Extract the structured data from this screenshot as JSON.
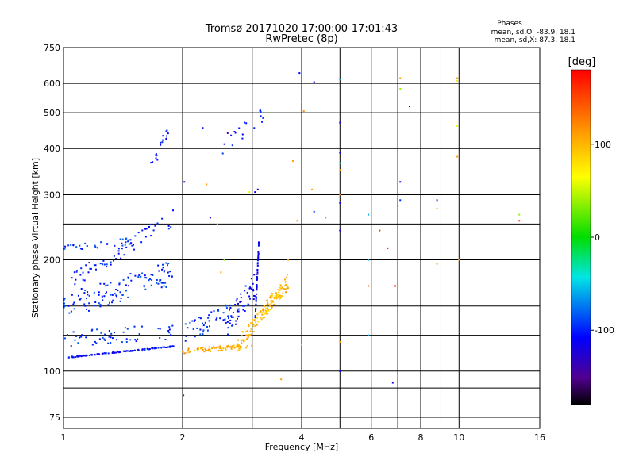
{
  "chart_data": {
    "type": "scatter",
    "title": "Tromsø 20171020 17:00:00-17:01:43",
    "subtitle": "RwPretec (8p)",
    "xlabel": "Frequency [MHz]",
    "ylabel": "Stationary phase Virtual Height [km]",
    "xscale": "log",
    "yscale": "log",
    "xlim": [
      1,
      16
    ],
    "ylim": [
      70,
      750
    ],
    "x_ticks": [
      1,
      2,
      4,
      6,
      8,
      10,
      16
    ],
    "x_tick_labels": [
      "1",
      "2",
      "4",
      "6",
      "8",
      "10",
      "16"
    ],
    "x_extra_gridlines": [
      3,
      5,
      7,
      9
    ],
    "y_ticks": [
      75,
      100,
      200,
      300,
      400,
      500,
      600,
      750
    ],
    "y_tick_labels": [
      "75",
      "100",
      "200",
      "300",
      "400",
      "500",
      "600",
      "750"
    ],
    "y_extra_gridlines": [
      90,
      125,
      150,
      250
    ],
    "grid": true,
    "legend": {
      "header": "Phases",
      "lines": [
        "mean, sd,O: -83.9, 18.1",
        "mean, sd,X: 87.3, 18.1"
      ],
      "placement": "top-right"
    },
    "colorbar": {
      "label": "[deg]",
      "range": [
        -180,
        180
      ],
      "ticks": [
        100,
        0,
        -100
      ],
      "tick_labels": [
        "100",
        "0",
        "-100"
      ]
    },
    "series": [
      {
        "traces": [
          {
            "x0": 1.03,
            "x1": 1.95,
            "y0": 109,
            "y1": 117,
            "phase": -105,
            "n": 110,
            "jitter": 0.003
          },
          {
            "x0": 1.0,
            "x1": 1.9,
            "y0": 122,
            "y1": 128,
            "phase": -95,
            "n": 55,
            "jitter": 0.05
          },
          {
            "x0": 1.0,
            "x1": 1.9,
            "y0": 150,
            "y1": 185,
            "phase": -95,
            "n": 120,
            "jitter": 0.08
          },
          {
            "x0": 1.05,
            "x1": 1.9,
            "y0": 175,
            "y1": 260,
            "phase": -100,
            "n": 60,
            "jitter": 0.05
          },
          {
            "x0": 1.0,
            "x1": 1.5,
            "y0": 215,
            "y1": 225,
            "phase": -95,
            "n": 30,
            "jitter": 0.02
          },
          {
            "x0": 1.65,
            "x1": 1.85,
            "y0": 350,
            "y1": 450,
            "phase": -105,
            "n": 18,
            "jitter": 0.04
          },
          {
            "x0": 2.0,
            "x1": 2.7,
            "y0": 126,
            "y1": 146,
            "phase": -95,
            "n": 45,
            "jitter": 0.06
          },
          {
            "x0": 2.6,
            "x1": 3.1,
            "y0": 135,
            "y1": 175,
            "phase": -105,
            "n": 55,
            "jitter": 0.08
          },
          {
            "x0": 3.05,
            "x1": 3.12,
            "y0": 135,
            "y1": 225,
            "phase": -110,
            "n": 50,
            "jitter": 0.02
          },
          {
            "x0": 2.0,
            "x1": 3.0,
            "y0": 113,
            "y1": 117,
            "phase": 105,
            "n": 75,
            "jitter": 0.015
          },
          {
            "x0": 2.75,
            "x1": 3.7,
            "y0": 118,
            "y1": 175,
            "phase": 100,
            "n": 110,
            "jitter": 0.05
          },
          {
            "x0": 3.1,
            "x1": 3.55,
            "y0": 138,
            "y1": 165,
            "phase": 90,
            "n": 30,
            "jitter": 0.04
          },
          {
            "x0": 2.5,
            "x1": 3.2,
            "y0": 400,
            "y1": 495,
            "phase": -100,
            "n": 18,
            "jitter": 0.05
          }
        ],
        "points": [
          [
            2.01,
            86,
            -95
          ],
          [
            2.02,
            325,
            -110
          ],
          [
            2.25,
            455,
            -100
          ],
          [
            2.3,
            320,
            110
          ],
          [
            2.45,
            250,
            90
          ],
          [
            2.5,
            185,
            110
          ],
          [
            2.55,
            200,
            30
          ],
          [
            2.6,
            440,
            -140
          ],
          [
            2.35,
            260,
            -110
          ],
          [
            2.95,
            305,
            60
          ],
          [
            3.05,
            305,
            -110
          ],
          [
            3.1,
            310,
            -110
          ],
          [
            3.8,
            370,
            110
          ],
          [
            3.95,
            640,
            -110
          ],
          [
            4.0,
            535,
            110
          ],
          [
            4.05,
            505,
            120
          ],
          [
            3.9,
            255,
            120
          ],
          [
            4.3,
            605,
            -110
          ],
          [
            4.25,
            310,
            110
          ],
          [
            4.3,
            270,
            -95
          ],
          [
            4.6,
            260,
            120
          ],
          [
            5.0,
            615,
            -60
          ],
          [
            5.0,
            470,
            -120
          ],
          [
            5.0,
            390,
            -110
          ],
          [
            5.0,
            365,
            -30
          ],
          [
            5.0,
            300,
            130
          ],
          [
            5.0,
            285,
            -110
          ],
          [
            5.0,
            240,
            -120
          ],
          [
            5.0,
            350,
            110
          ],
          [
            5.0,
            100,
            -110
          ],
          [
            5.0,
            120,
            110
          ],
          [
            4.0,
            118,
            40
          ],
          [
            5.9,
            265,
            -60
          ],
          [
            5.9,
            200,
            -60
          ],
          [
            5.9,
            170,
            140
          ],
          [
            5.9,
            125,
            -60
          ],
          [
            6.3,
            240,
            160
          ],
          [
            6.6,
            215,
            160
          ],
          [
            6.9,
            170,
            160
          ],
          [
            6.8,
            93,
            -110
          ],
          [
            7.1,
            620,
            110
          ],
          [
            7.1,
            580,
            40
          ],
          [
            7.1,
            325,
            -110
          ],
          [
            7.1,
            290,
            -95
          ],
          [
            7.0,
            280,
            150
          ],
          [
            7.5,
            520,
            -110
          ],
          [
            8.8,
            290,
            -95
          ],
          [
            8.8,
            275,
            110
          ],
          [
            8.8,
            195,
            110
          ],
          [
            9.9,
            610,
            80
          ],
          [
            9.9,
            620,
            110
          ],
          [
            9.9,
            460,
            60
          ],
          [
            9.9,
            380,
            110
          ],
          [
            10.0,
            200,
            110
          ],
          [
            14.2,
            265,
            40
          ],
          [
            14.2,
            255,
            160
          ],
          [
            3.55,
            95,
            110
          ],
          [
            3.7,
            200,
            110
          ]
        ]
      }
    ]
  }
}
